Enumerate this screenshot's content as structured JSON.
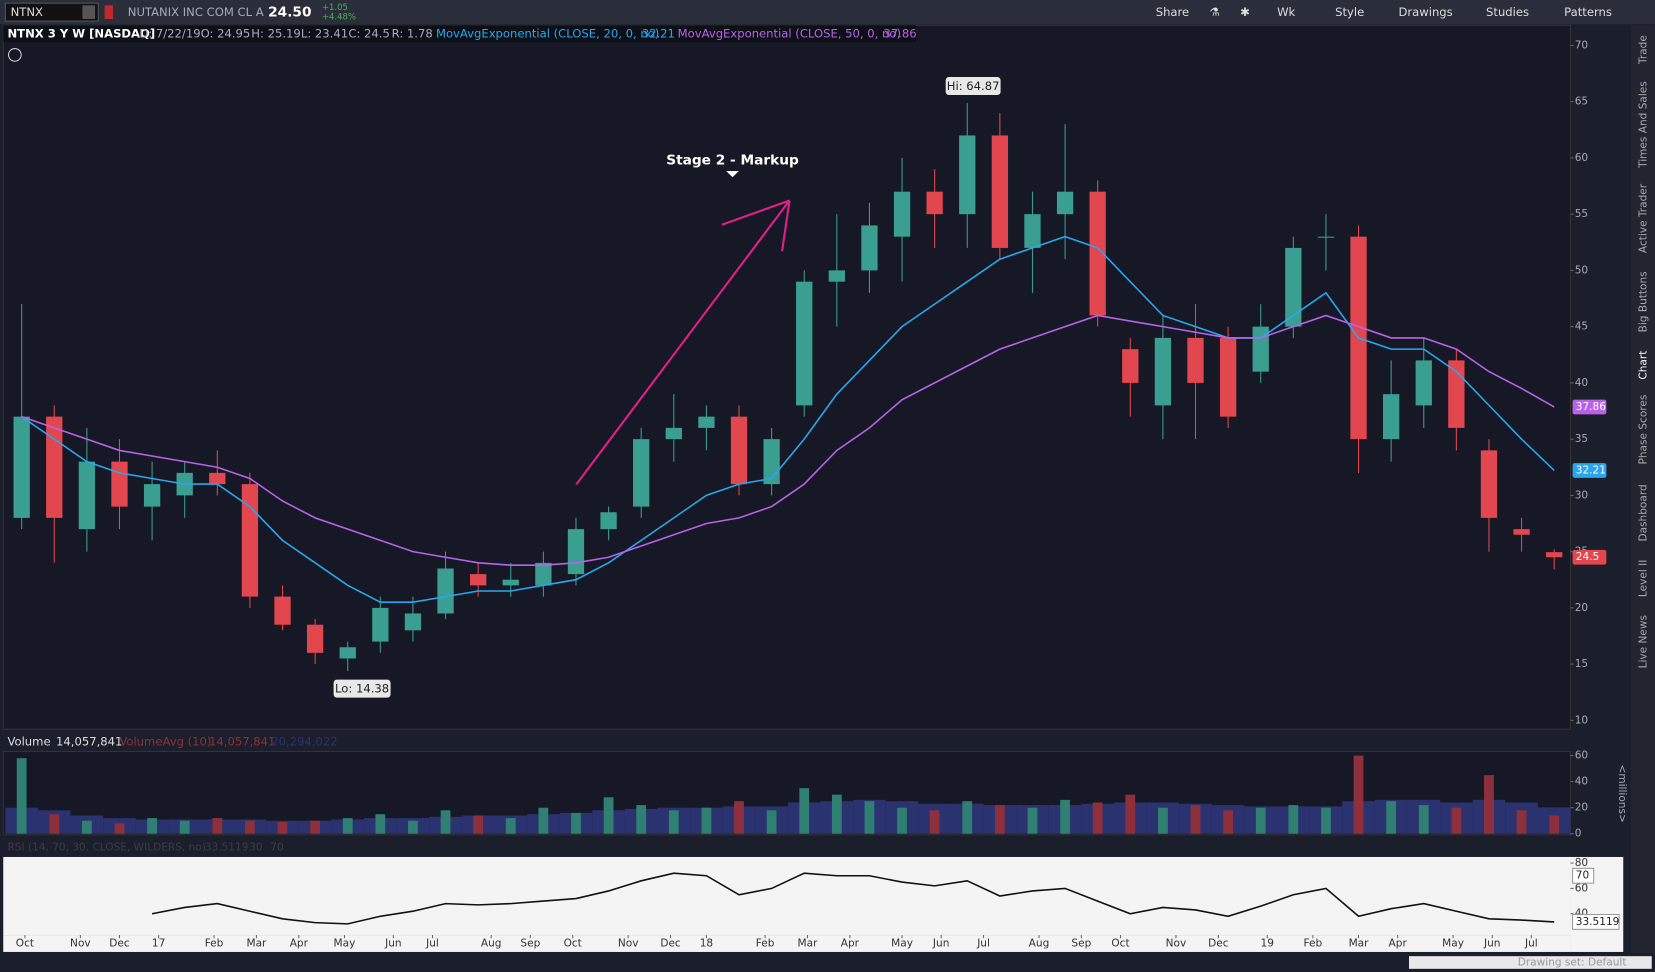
{
  "toolbar": {
    "symbol": "NTNX",
    "company": "NUTANIX INC COM CL A",
    "last": "24.50",
    "change": "+1.05",
    "change_pct": "+4.48%",
    "buttons": [
      "Share",
      "Wk",
      "Style",
      "Drawings",
      "Studies",
      "Patterns"
    ]
  },
  "side_tabs": [
    "Trade",
    "Times And Sales",
    "Active Trader",
    "Big Buttons",
    "Chart",
    "Phase Scores",
    "Dashboard",
    "Level II",
    "Live News"
  ],
  "status_bar": "Drawing set: Default",
  "chart_data": [
    {
      "type": "candlestick",
      "title": "NTNX 3 Y W [NASDAQ]",
      "header": [
        "D: 7/22/19",
        "O: 24.95",
        "H: 25.19",
        "L: 23.41",
        "C: 24.5",
        "R: 1.78"
      ],
      "annotations": [
        "Hi: 64.87",
        "Lo: 14.38",
        "Stage 2 - Markup"
      ],
      "up_color": "#3a9e90",
      "down_color": "#e2474f",
      "open": [
        28,
        37,
        27,
        33,
        29,
        30,
        32,
        31,
        21,
        18.5,
        15.5,
        17,
        18,
        19.5,
        23,
        22,
        22,
        23,
        27,
        29,
        35,
        36,
        37,
        31,
        38,
        49,
        50,
        53,
        57,
        55,
        62,
        52,
        55,
        57,
        43,
        38,
        44,
        44,
        41,
        45,
        53,
        53,
        35,
        38,
        42,
        34,
        27,
        24.95
      ],
      "high": [
        47,
        38,
        36,
        35,
        33,
        33,
        34,
        32,
        22,
        19,
        17,
        21,
        21,
        25,
        24,
        24,
        25,
        28,
        29,
        36,
        39,
        38,
        38,
        36,
        50,
        55,
        56,
        60,
        59,
        64.87,
        64,
        57,
        63,
        58,
        44,
        46,
        47,
        45,
        47,
        53,
        55,
        54,
        42,
        44,
        43,
        35,
        28,
        25.19
      ],
      "low": [
        27,
        24,
        25,
        27,
        26,
        28,
        30,
        20,
        18,
        15,
        14.38,
        16,
        17,
        19,
        21,
        21,
        21,
        22,
        26,
        28,
        33,
        34,
        30,
        30,
        37,
        45,
        48,
        49,
        52,
        52,
        51,
        48,
        51,
        45,
        37,
        35,
        35,
        36,
        40,
        44,
        50,
        32,
        33,
        36,
        34,
        25,
        25,
        23.41
      ],
      "close": [
        37,
        28,
        33,
        29,
        31,
        32,
        31,
        21,
        18.5,
        16,
        16.5,
        20,
        19.5,
        23.5,
        22,
        22.5,
        24,
        27,
        28.5,
        35,
        36,
        37,
        31,
        35,
        49,
        50,
        54,
        57,
        55,
        62,
        52,
        55,
        57,
        46,
        40,
        44,
        40,
        37,
        45,
        52,
        53,
        35,
        39,
        42,
        36,
        28,
        26.5,
        24.5
      ],
      "series": [
        {
          "name": "MovAvgExponential (CLOSE, 20, 0, no)",
          "color": "#2aa6ee",
          "values": [
            37,
            35,
            33,
            32,
            31.5,
            31,
            31,
            29,
            26,
            24,
            22,
            20.5,
            20.5,
            21,
            21.5,
            21.5,
            22,
            22.5,
            24,
            26,
            28,
            30,
            31,
            31.5,
            35,
            39,
            42,
            45,
            47,
            49,
            51,
            52,
            53,
            52,
            49,
            46,
            45,
            44,
            44,
            46,
            48,
            44,
            43,
            43,
            41,
            38,
            35,
            32.21
          ]
        },
        {
          "name": "MovAvgExponential (CLOSE, 50, 0, no)",
          "color": "#b862ea",
          "values": [
            37,
            36,
            35,
            34,
            33.5,
            33,
            32.5,
            31.5,
            29.5,
            28,
            27,
            26,
            25,
            24.5,
            24,
            23.8,
            23.8,
            24,
            24.5,
            25.5,
            26.5,
            27.5,
            28,
            29,
            31,
            34,
            36,
            38.5,
            40,
            41.5,
            43,
            44,
            45,
            46,
            45.5,
            45,
            44.5,
            44,
            44,
            45,
            46,
            45,
            44,
            44,
            43,
            41,
            39.5,
            37.86
          ]
        }
      ],
      "xlim": [
        -0.5,
        47.5
      ],
      "xticks": [
        {
          "value": 0.1,
          "label": "Oct"
        },
        {
          "value": 1.8,
          "label": "Nov"
        },
        {
          "value": 3.0,
          "label": "Dec"
        },
        {
          "value": 4.2,
          "label": "17"
        },
        {
          "value": 5.9,
          "label": "Feb"
        },
        {
          "value": 7.2,
          "label": "Mar"
        },
        {
          "value": 8.5,
          "label": "Apr"
        },
        {
          "value": 9.9,
          "label": "May"
        },
        {
          "value": 11.4,
          "label": "Jun"
        },
        {
          "value": 12.6,
          "label": "Jul"
        },
        {
          "value": 14.4,
          "label": "Aug"
        },
        {
          "value": 15.6,
          "label": "Sep"
        },
        {
          "value": 16.9,
          "label": "Oct"
        },
        {
          "value": 18.6,
          "label": "Nov"
        },
        {
          "value": 19.9,
          "label": "Dec"
        },
        {
          "value": 21.0,
          "label": "18"
        },
        {
          "value": 22.8,
          "label": "Feb"
        },
        {
          "value": 24.1,
          "label": "Mar"
        },
        {
          "value": 25.4,
          "label": "Apr"
        },
        {
          "value": 27.0,
          "label": "May"
        },
        {
          "value": 28.2,
          "label": "Jun"
        },
        {
          "value": 29.5,
          "label": "Jul"
        },
        {
          "value": 31.2,
          "label": "Aug"
        },
        {
          "value": 32.5,
          "label": "Sep"
        },
        {
          "value": 33.7,
          "label": "Oct"
        },
        {
          "value": 35.4,
          "label": "Nov"
        },
        {
          "value": 36.7,
          "label": "Dec"
        },
        {
          "value": 38.2,
          "label": "19"
        },
        {
          "value": 39.6,
          "label": "Feb"
        },
        {
          "value": 41.0,
          "label": "Mar"
        },
        {
          "value": 42.2,
          "label": "Apr"
        },
        {
          "value": 43.9,
          "label": "May"
        },
        {
          "value": 45.1,
          "label": "Jun"
        },
        {
          "value": 46.3,
          "label": "Jul"
        }
      ],
      "ylim": [
        9.3,
        70.1
      ],
      "yticks": [
        10,
        15,
        20,
        25,
        30,
        35,
        40,
        45,
        50,
        55,
        60,
        65,
        70
      ]
    },
    {
      "type": "bar",
      "header": [
        "14,057,841",
        "14,057,841",
        "20,294,022"
      ],
      "unit_label": "<millions>",
      "series": [
        {
          "name": "Volume",
          "values": [
            58,
            15,
            10,
            8,
            12,
            10,
            12,
            10,
            9,
            10,
            12,
            15,
            10,
            18,
            14,
            12,
            20,
            16,
            28,
            22,
            18,
            20,
            25,
            18,
            35,
            30,
            25,
            20,
            18,
            25,
            22,
            20,
            26,
            24,
            30,
            20,
            22,
            18,
            20,
            22,
            20,
            60,
            25,
            22,
            20,
            45,
            18,
            14.057841
          ]
        },
        {
          "name": "VolumeAvg (10)",
          "color": "#2a3270",
          "values": [
            20,
            18,
            14,
            12,
            11,
            11,
            11,
            11,
            10,
            10,
            11,
            12,
            12,
            13,
            14,
            14,
            15,
            16,
            18,
            19,
            20,
            20,
            21,
            21,
            24,
            25,
            26,
            25,
            23,
            23,
            22,
            22,
            22,
            23,
            24,
            24,
            23,
            22,
            21,
            21,
            21,
            25,
            26,
            26,
            24,
            26,
            24,
            20.294022
          ]
        }
      ],
      "up_color": "#2f7f72",
      "down_color": "#8e303c",
      "ylim": [
        0,
        62.4
      ],
      "yticks": [
        0,
        20,
        40,
        60
      ]
    },
    {
      "type": "line",
      "title": "RSI (14, 70, 30, CLOSE, WILDERS, no)",
      "color": "#111111",
      "levels": [
        30,
        70
      ],
      "values": [
        null,
        null,
        null,
        null,
        40,
        45,
        48,
        42,
        36,
        33,
        32,
        38,
        42,
        48,
        47,
        48,
        50,
        52,
        58,
        66,
        72,
        70,
        55,
        60,
        72,
        70,
        70,
        65,
        62,
        66,
        54,
        58,
        60,
        50,
        40,
        45,
        43,
        38,
        46,
        55,
        60,
        38,
        44,
        48,
        42,
        36,
        35,
        33.5119
      ],
      "ylim": [
        24,
        84
      ],
      "yticks": [
        40,
        60,
        80
      ]
    }
  ]
}
